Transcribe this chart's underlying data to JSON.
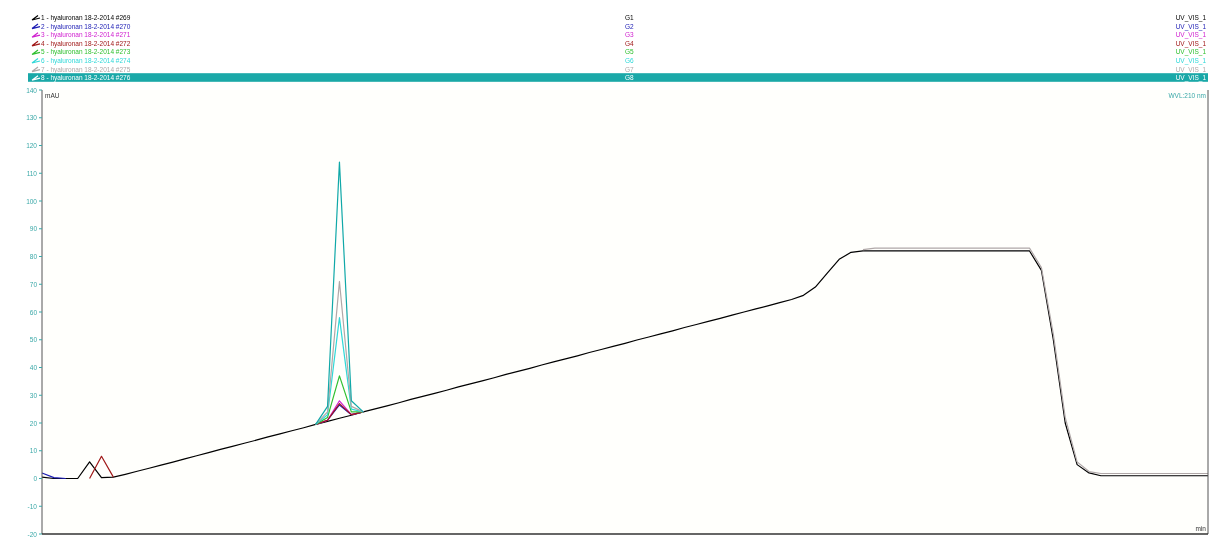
{
  "chart_data": {
    "type": "line",
    "ylabel": "mAU",
    "xlabel": "min",
    "legend": "top",
    "grid": false,
    "ylim": [
      -20,
      140
    ],
    "yticks": [
      -20,
      -10,
      0,
      10,
      20,
      30,
      40,
      50,
      60,
      70,
      80,
      90,
      100,
      110,
      120,
      130,
      140
    ],
    "categories": [
      null,
      null,
      null,
      null,
      null,
      null,
      null,
      null,
      null,
      null,
      null,
      null,
      null,
      null,
      null,
      null,
      null,
      null,
      null,
      null,
      null,
      null,
      null,
      null,
      null,
      null,
      null,
      null,
      null,
      null,
      null,
      null,
      null,
      null,
      null,
      null,
      null,
      null,
      null,
      null,
      null,
      null,
      null,
      null,
      null,
      null,
      null,
      null,
      null,
      null,
      null,
      null,
      null,
      null,
      null,
      null,
      null,
      null,
      null,
      null,
      null,
      null,
      null,
      null,
      null,
      null,
      null,
      null,
      null,
      null,
      null,
      null,
      null,
      null,
      null,
      null,
      null,
      null,
      null,
      null,
      null,
      null,
      null,
      null,
      null,
      null,
      null,
      null,
      null,
      null,
      null,
      null,
      null,
      null,
      null,
      null,
      null,
      null,
      null
    ],
    "series": [
      {
        "name": "1 - hyaluronan 18-2-2014 #269",
        "color": "#000000",
        "values": [
          0.5,
          0,
          0,
          0,
          6,
          0.3,
          0.5,
          1.5,
          2.6,
          3.7,
          4.8,
          5.9,
          7.1,
          8.2,
          9.3,
          10.5,
          11.6,
          12.7,
          13.8,
          15.0,
          16.1,
          17.2,
          18.3,
          19.5,
          20.6,
          21.7,
          22.8,
          24.0,
          25.1,
          26.2,
          27.3,
          28.5,
          29.6,
          30.7,
          31.8,
          33.0,
          34.1,
          35.2,
          36.3,
          37.5,
          38.6,
          39.7,
          40.9,
          42.0,
          43.1,
          44.2,
          45.4,
          46.5,
          47.6,
          48.7,
          49.9,
          51.0,
          52.1,
          53.2,
          54.4,
          55.5,
          56.6,
          57.7,
          58.9,
          60.0,
          61.1,
          62.2,
          63.4,
          64.5,
          66,
          69,
          74,
          79,
          81.5,
          82,
          82,
          82,
          82,
          82,
          82,
          82,
          82,
          82,
          82,
          82,
          82,
          82,
          82,
          82,
          75,
          50,
          20,
          5,
          2,
          1,
          1,
          1,
          1,
          1,
          1,
          1,
          1,
          1,
          1
        ]
      },
      {
        "name": "2 - hyaluronan 18-2-2014 #270",
        "color": "#1c1cb4",
        "values": [
          2,
          0.3,
          0,
          null,
          null,
          null,
          null,
          null,
          null,
          null,
          null,
          null,
          null,
          null,
          null,
          null,
          null,
          null,
          null,
          null,
          null,
          null,
          null,
          19.5,
          21,
          26.5,
          23,
          24.0,
          null,
          null,
          null,
          null,
          null,
          null,
          null,
          null,
          null,
          null,
          null,
          null,
          null,
          null,
          null,
          null,
          null,
          null,
          null,
          null,
          null,
          null,
          null,
          null,
          null,
          null,
          null,
          null,
          null,
          null,
          null,
          null,
          null,
          null,
          null,
          null,
          null,
          null,
          null,
          null,
          null,
          null,
          null,
          null,
          null,
          null,
          null,
          null,
          null,
          null,
          null,
          null,
          null,
          null,
          null,
          null,
          null,
          null,
          null,
          null,
          null,
          null,
          null,
          null,
          null,
          null,
          null,
          null,
          null,
          null,
          null
        ]
      },
      {
        "name": "3 - hyaluronan 18-2-2014 #271",
        "color": "#d020d0",
        "values": [
          null,
          null,
          null,
          null,
          null,
          null,
          null,
          null,
          null,
          null,
          null,
          null,
          null,
          null,
          null,
          null,
          null,
          null,
          null,
          null,
          null,
          null,
          null,
          19.5,
          21,
          28,
          23,
          24.0,
          null,
          null,
          null,
          null,
          null,
          null,
          null,
          null,
          null,
          null,
          null,
          null,
          null,
          null,
          null,
          null,
          null,
          null,
          null,
          null,
          null,
          null,
          null,
          null,
          null,
          null,
          null,
          null,
          null,
          null,
          null,
          null,
          null,
          null,
          null,
          null,
          null,
          null,
          null,
          null,
          null,
          null,
          null,
          null,
          null,
          null,
          null,
          null,
          null,
          null,
          null,
          null,
          null,
          null,
          null,
          null,
          null,
          null,
          null,
          null,
          null,
          null,
          null,
          null,
          null,
          null,
          null,
          null,
          null,
          null,
          null
        ]
      },
      {
        "name": "4 - hyaluronan 18-2-2014 #272",
        "color": "#a01818",
        "values": [
          null,
          null,
          null,
          null,
          0,
          8,
          0.5,
          null,
          null,
          null,
          null,
          null,
          null,
          null,
          null,
          null,
          null,
          null,
          null,
          null,
          null,
          null,
          null,
          19.5,
          21,
          27,
          23,
          24.0,
          null,
          null,
          null,
          null,
          null,
          null,
          null,
          null,
          null,
          null,
          null,
          null,
          null,
          null,
          null,
          null,
          null,
          null,
          null,
          null,
          null,
          null,
          null,
          null,
          null,
          null,
          null,
          null,
          null,
          null,
          null,
          null,
          null,
          null,
          null,
          null,
          null,
          null,
          null,
          null,
          null,
          null,
          null,
          null,
          null,
          null,
          null,
          null,
          null,
          null,
          null,
          null,
          null,
          null,
          null,
          null,
          null,
          null,
          null,
          null,
          null,
          null,
          null,
          null,
          null,
          null,
          null,
          null,
          null,
          null,
          null
        ]
      },
      {
        "name": "5 - hyaluronan 18-2-2014 #273",
        "color": "#30c030",
        "values": [
          null,
          null,
          null,
          null,
          null,
          null,
          null,
          null,
          null,
          null,
          null,
          null,
          null,
          null,
          null,
          null,
          null,
          null,
          null,
          null,
          null,
          null,
          null,
          19.5,
          22,
          37,
          24,
          24.0,
          null,
          null,
          null,
          null,
          null,
          null,
          null,
          null,
          null,
          null,
          null,
          null,
          null,
          null,
          null,
          null,
          null,
          null,
          null,
          null,
          null,
          null,
          null,
          null,
          null,
          null,
          null,
          null,
          null,
          null,
          null,
          null,
          null,
          null,
          null,
          null,
          null,
          null,
          null,
          null,
          null,
          null,
          null,
          null,
          null,
          null,
          null,
          null,
          null,
          null,
          null,
          null,
          null,
          null,
          null,
          null,
          null,
          null,
          null,
          null,
          null,
          null,
          null,
          null,
          null,
          null,
          null,
          null,
          null,
          null,
          null
        ]
      },
      {
        "name": "6 - hyaluronan 18-2-2014 #274",
        "color": "#30d8d8",
        "values": [
          null,
          null,
          null,
          null,
          null,
          null,
          null,
          null,
          null,
          null,
          null,
          null,
          null,
          null,
          null,
          null,
          null,
          null,
          null,
          null,
          null,
          null,
          null,
          19.5,
          23,
          58,
          25,
          24.0,
          null,
          null,
          null,
          null,
          null,
          null,
          null,
          null,
          null,
          null,
          null,
          null,
          null,
          null,
          null,
          null,
          null,
          null,
          null,
          null,
          null,
          null,
          null,
          null,
          null,
          null,
          null,
          null,
          null,
          null,
          null,
          null,
          null,
          null,
          null,
          null,
          null,
          null,
          null,
          null,
          null,
          null,
          null,
          null,
          null,
          null,
          null,
          null,
          null,
          null,
          null,
          null,
          null,
          null,
          null,
          null,
          null,
          null,
          null,
          null,
          null,
          null,
          null,
          null,
          null,
          null,
          null,
          null,
          null,
          null,
          null
        ]
      },
      {
        "name": "7 - hyaluronan 18-2-2014 #275",
        "color": "#b0a8a8",
        "values": [
          null,
          null,
          null,
          null,
          null,
          null,
          null,
          null,
          null,
          null,
          null,
          null,
          null,
          null,
          null,
          null,
          null,
          null,
          null,
          null,
          null,
          null,
          null,
          19.5,
          24,
          71,
          26,
          24.0,
          null,
          null,
          null,
          null,
          null,
          null,
          null,
          null,
          null,
          null,
          null,
          null,
          null,
          null,
          null,
          null,
          null,
          null,
          null,
          null,
          null,
          null,
          null,
          null,
          null,
          null,
          null,
          null,
          null,
          null,
          null,
          null,
          null,
          null,
          null,
          null,
          null,
          null,
          null,
          null,
          null,
          82.5,
          83,
          83,
          83,
          83,
          83,
          83,
          83,
          83,
          83,
          83,
          83,
          83,
          83,
          83,
          76,
          52,
          22,
          6,
          2.5,
          1.8,
          1.8,
          1.8,
          1.8,
          1.8,
          1.8,
          1.8,
          1.8,
          1.8,
          1.8
        ]
      },
      {
        "name": "8 - hyaluronan 18-2-2014 #276",
        "color": "#10a8a8",
        "values": [
          null,
          null,
          null,
          null,
          null,
          null,
          null,
          null,
          null,
          null,
          null,
          null,
          null,
          null,
          null,
          null,
          null,
          null,
          null,
          null,
          null,
          null,
          null,
          19.5,
          26,
          114,
          28,
          24.0,
          null,
          null,
          null,
          null,
          null,
          null,
          null,
          null,
          null,
          null,
          null,
          null,
          null,
          null,
          null,
          null,
          null,
          null,
          null,
          null,
          null,
          null,
          null,
          null,
          null,
          null,
          null,
          null,
          null,
          null,
          null,
          null,
          null,
          null,
          null,
          null,
          null,
          null,
          null,
          null,
          null,
          null,
          null,
          null,
          null,
          null,
          null,
          null,
          null,
          null,
          null,
          null,
          null,
          null,
          null,
          null,
          null,
          null,
          null,
          null,
          null,
          null,
          null,
          null,
          null,
          null,
          null,
          null,
          null,
          null,
          null
        ]
      }
    ],
    "annotations": [
      "G1",
      "G2",
      "G3",
      "G4",
      "G5",
      "G6",
      "G7",
      "G8",
      "UV_VIS_1",
      "UV_VIS_1",
      "UV_VIS_1",
      "UV_VIS_1",
      "UV_VIS_1",
      "UV_VIS_1",
      "UV_VIS_1",
      "UV_VIS_1",
      "WVL:210 nm"
    ]
  }
}
